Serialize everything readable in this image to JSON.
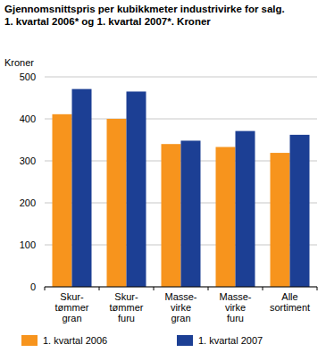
{
  "chart_data": {
    "type": "bar",
    "title": "Gjennomsnittspris per kubikkmeter industrivirke for salg.\n1. kvartal 2006* og 1. kvartal 2007*. Kroner",
    "y_label": "Kroner",
    "categories": [
      "Skur-\ntømmer\ngran",
      "Skur-\ntømmer\nfuru",
      "Masse-\nvirke\ngran",
      "Masse-\nvirke\nfuru",
      "Alle\nsortiment"
    ],
    "series": [
      {
        "name": "1. kvartal 2006",
        "color": "#f7941d",
        "values": [
          411,
          400,
          340,
          333,
          319
        ]
      },
      {
        "name": "1. kvartal 2007",
        "color": "#1c3f94",
        "values": [
          471,
          465,
          348,
          371,
          362
        ]
      }
    ],
    "ylim": [
      0,
      500
    ],
    "yticks": [
      0,
      100,
      200,
      300,
      400,
      500
    ],
    "grid": true,
    "legend": "bottom"
  }
}
